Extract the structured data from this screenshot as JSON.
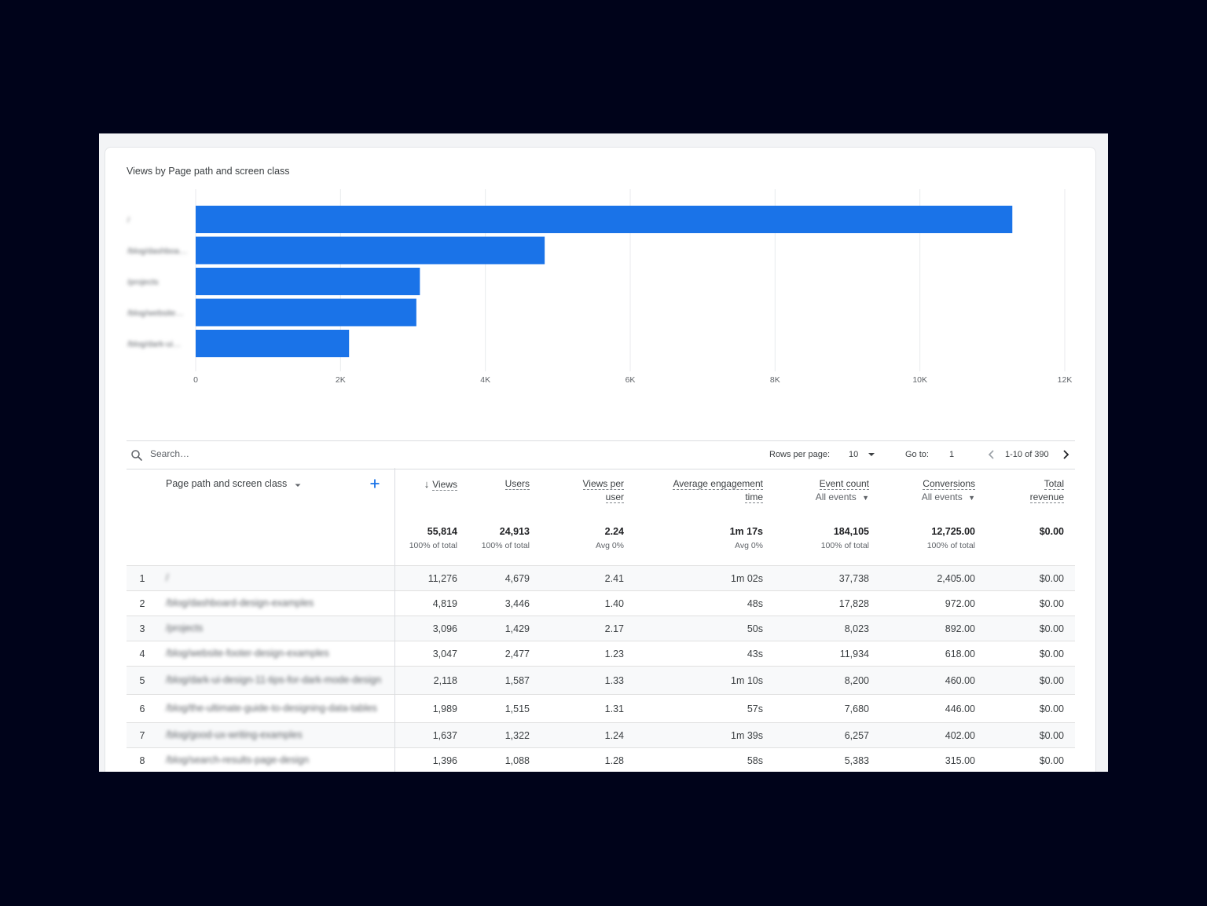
{
  "chart_title": "Views by Page path and screen class",
  "chart_data": {
    "type": "bar",
    "orientation": "horizontal",
    "categories": [
      "/",
      "/blog/dashboard-design-examples",
      "/projects",
      "/blog/website-footer-design-examples",
      "/blog/dark-ui-design-11-tips-for-dark-mode-design"
    ],
    "values": [
      11276,
      4819,
      3096,
      3047,
      2118
    ],
    "xlim": [
      0,
      12000
    ],
    "x_ticks": [
      "0",
      "2K",
      "4K",
      "6K",
      "8K",
      "10K",
      "12K"
    ],
    "color": "#1a73e8",
    "grid": true
  },
  "search": {
    "placeholder": "Search…"
  },
  "pagination": {
    "rows_label": "Rows per page:",
    "rows_value": "10",
    "goto_label": "Go to:",
    "goto_value": "1",
    "range": "1-10 of 390"
  },
  "table": {
    "dimension_header": "Page path and screen class",
    "columns": [
      {
        "label": "Views",
        "sub": ""
      },
      {
        "label": "Users",
        "sub": ""
      },
      {
        "label1": "Views per",
        "label2": "user"
      },
      {
        "label1": "Average engagement",
        "label2": "time"
      },
      {
        "label": "Event count",
        "sub": "All events"
      },
      {
        "label": "Conversions",
        "sub": "All events"
      },
      {
        "label1": "Total",
        "label2": "revenue"
      }
    ],
    "totals": [
      {
        "value": "55,814",
        "caption": "100% of total"
      },
      {
        "value": "24,913",
        "caption": "100% of total"
      },
      {
        "value": "2.24",
        "caption": "Avg 0%"
      },
      {
        "value": "1m 17s",
        "caption": "Avg 0%"
      },
      {
        "value": "184,105",
        "caption": "100% of total"
      },
      {
        "value": "12,725.00",
        "caption": "100% of total"
      },
      {
        "value": "$0.00",
        "caption": ""
      }
    ],
    "rows": [
      {
        "idx": "1",
        "page": "/",
        "views": "11,276",
        "users": "4,679",
        "vpu": "2.41",
        "aet": "1m 02s",
        "events": "37,738",
        "conv": "2,405.00",
        "rev": "$0.00"
      },
      {
        "idx": "2",
        "page": "/blog/dashboard-design-examples",
        "views": "4,819",
        "users": "3,446",
        "vpu": "1.40",
        "aet": "48s",
        "events": "17,828",
        "conv": "972.00",
        "rev": "$0.00"
      },
      {
        "idx": "3",
        "page": "/projects",
        "views": "3,096",
        "users": "1,429",
        "vpu": "2.17",
        "aet": "50s",
        "events": "8,023",
        "conv": "892.00",
        "rev": "$0.00"
      },
      {
        "idx": "4",
        "page": "/blog/website-footer-design-examples",
        "views": "3,047",
        "users": "2,477",
        "vpu": "1.23",
        "aet": "43s",
        "events": "11,934",
        "conv": "618.00",
        "rev": "$0.00"
      },
      {
        "idx": "5",
        "page": "/blog/dark-ui-design-11-tips-for-dark-mode-design",
        "views": "2,118",
        "users": "1,587",
        "vpu": "1.33",
        "aet": "1m 10s",
        "events": "8,200",
        "conv": "460.00",
        "rev": "$0.00"
      },
      {
        "idx": "6",
        "page": "/blog/the-ultimate-guide-to-designing-data-tables",
        "views": "1,989",
        "users": "1,515",
        "vpu": "1.31",
        "aet": "57s",
        "events": "7,680",
        "conv": "446.00",
        "rev": "$0.00"
      },
      {
        "idx": "7",
        "page": "/blog/good-ux-writing-examples",
        "views": "1,637",
        "users": "1,322",
        "vpu": "1.24",
        "aet": "1m 39s",
        "events": "6,257",
        "conv": "402.00",
        "rev": "$0.00"
      },
      {
        "idx": "8",
        "page": "/blog/search-results-page-design",
        "views": "1,396",
        "users": "1,088",
        "vpu": "1.28",
        "aet": "58s",
        "events": "5,383",
        "conv": "315.00",
        "rev": "$0.00"
      }
    ]
  }
}
